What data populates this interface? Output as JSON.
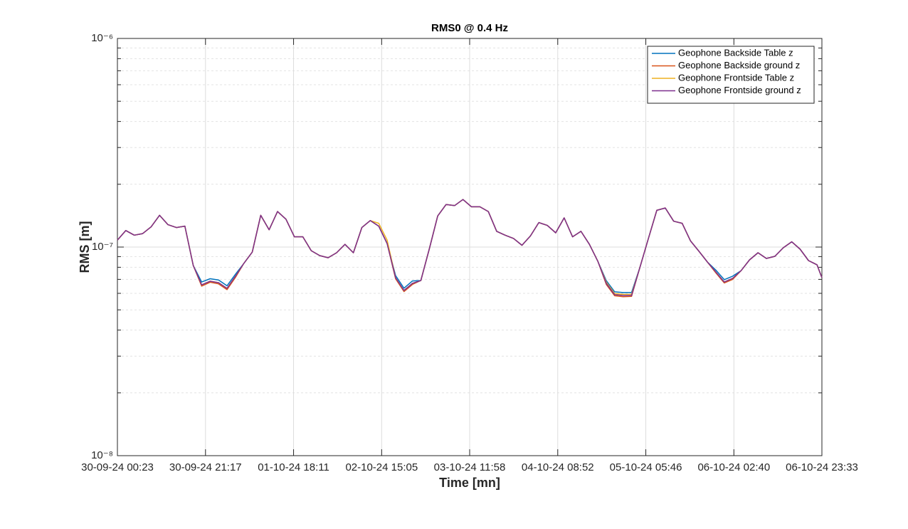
{
  "chart_data": {
    "type": "line",
    "title": "RMS0 @ 0.4 Hz",
    "x_label": "Time [mn]",
    "y_label": "RMS [m]",
    "log_y": true,
    "grid": true,
    "minor_grid": true,
    "legend_position": "top-right",
    "xlim": [
      "30-09-24 00:23",
      "06-10-24 23:33"
    ],
    "xticks": [
      "30-09-24 00:23",
      "30-09-24 21:17",
      "01-10-24 18:11",
      "02-10-24 15:05",
      "03-10-24 11:58",
      "04-10-24 08:52",
      "05-10-24 05:46",
      "06-10-24 02:40",
      "06-10-24 23:33"
    ],
    "ylim": [
      1e-08,
      1e-06
    ],
    "yticks": [
      {
        "value": 1e-08,
        "label": "10⁻⁸"
      },
      {
        "value": 1e-07,
        "label": "10⁻⁷"
      },
      {
        "value": 1e-06,
        "label": "10⁻⁶"
      }
    ],
    "x": [
      "30-09-24 00:23",
      "30-09-24 02:23",
      "30-09-24 04:23",
      "30-09-24 06:23",
      "30-09-24 08:23",
      "30-09-24 10:23",
      "30-09-24 12:23",
      "30-09-24 14:23",
      "30-09-24 16:23",
      "30-09-24 18:23",
      "30-09-24 20:23",
      "30-09-24 22:23",
      "01-10-24 00:23",
      "01-10-24 02:23",
      "01-10-24 04:23",
      "01-10-24 06:23",
      "01-10-24 08:23",
      "01-10-24 10:23",
      "01-10-24 12:23",
      "01-10-24 14:23",
      "01-10-24 16:23",
      "01-10-24 18:23",
      "01-10-24 20:23",
      "01-10-24 22:23",
      "02-10-24 00:23",
      "02-10-24 02:23",
      "02-10-24 04:23",
      "02-10-24 06:23",
      "02-10-24 08:23",
      "02-10-24 10:23",
      "02-10-24 12:23",
      "02-10-24 14:23",
      "02-10-24 16:23",
      "02-10-24 18:23",
      "02-10-24 20:23",
      "02-10-24 22:23",
      "03-10-24 00:23",
      "03-10-24 02:23",
      "03-10-24 04:23",
      "03-10-24 06:23",
      "03-10-24 08:23",
      "03-10-24 10:23",
      "03-10-24 12:23",
      "03-10-24 14:23",
      "03-10-24 16:23",
      "03-10-24 18:23",
      "03-10-24 20:23",
      "03-10-24 22:23",
      "04-10-24 00:23",
      "04-10-24 02:23",
      "04-10-24 04:23",
      "04-10-24 06:23",
      "04-10-24 08:23",
      "04-10-24 10:23",
      "04-10-24 12:23",
      "04-10-24 14:23",
      "04-10-24 16:23",
      "04-10-24 18:23",
      "04-10-24 20:23",
      "04-10-24 22:23",
      "05-10-24 00:23",
      "05-10-24 02:23",
      "05-10-24 04:23",
      "05-10-24 06:23",
      "05-10-24 08:23",
      "05-10-24 10:23",
      "05-10-24 12:23",
      "05-10-24 14:23",
      "05-10-24 16:23",
      "05-10-24 18:23",
      "05-10-24 20:23",
      "05-10-24 22:23",
      "06-10-24 00:23",
      "06-10-24 02:23",
      "06-10-24 04:23",
      "06-10-24 06:23",
      "06-10-24 08:23",
      "06-10-24 10:23",
      "06-10-24 12:23",
      "06-10-24 14:23",
      "06-10-24 16:23",
      "06-10-24 18:23",
      "06-10-24 20:23",
      "06-10-24 22:23",
      "06-10-24 23:33"
    ],
    "series": [
      {
        "name": "Geophone Backside Table z",
        "color": "#0072BD",
        "values": [
          1.08e-07,
          1.2e-07,
          1.14e-07,
          1.16e-07,
          1.25e-07,
          1.42e-07,
          1.28e-07,
          1.24e-07,
          1.26e-07,
          8.15e-08,
          6.8e-08,
          7.05e-08,
          6.95e-08,
          6.52e-08,
          7.4e-08,
          8.35e-08,
          9.46e-08,
          1.42e-07,
          1.21e-07,
          1.48e-07,
          1.36e-07,
          1.12e-07,
          1.12e-07,
          9.61e-08,
          9.1e-08,
          8.89e-08,
          9.39e-08,
          1.03e-07,
          9.39e-08,
          1.24e-07,
          1.34e-07,
          1.26e-07,
          1.04e-07,
          7.3e-08,
          6.35e-08,
          6.88e-08,
          6.91e-08,
          9.77e-08,
          1.41e-07,
          1.6e-07,
          1.58e-07,
          1.69e-07,
          1.56e-07,
          1.56e-07,
          1.48e-07,
          1.19e-07,
          1.14e-07,
          1.1e-07,
          1.02e-07,
          1.13e-07,
          1.31e-07,
          1.27e-07,
          1.17e-07,
          1.38e-07,
          1.12e-07,
          1.19e-07,
          1.03e-07,
          8.55e-08,
          6.9e-08,
          6.1e-08,
          6.05e-08,
          6.05e-08,
          8.02e-08,
          1.1e-07,
          1.5e-07,
          1.54e-07,
          1.33e-07,
          1.3e-07,
          1.07e-07,
          9.54e-08,
          8.48e-08,
          7.75e-08,
          6.98e-08,
          7.25e-08,
          7.71e-08,
          8.68e-08,
          9.39e-08,
          8.82e-08,
          9.03e-08,
          9.92e-08,
          1.06e-07,
          9.77e-08,
          8.61e-08,
          8.22e-08,
          7.13e-08
        ]
      },
      {
        "name": "Geophone Backside ground z",
        "color": "#D95319",
        "values": [
          1.08e-07,
          1.2e-07,
          1.14e-07,
          1.16e-07,
          1.25e-07,
          1.42e-07,
          1.28e-07,
          1.24e-07,
          1.26e-07,
          8.15e-08,
          6.5e-08,
          6.78e-08,
          6.66e-08,
          6.25e-08,
          7.15e-08,
          8.35e-08,
          9.46e-08,
          1.42e-07,
          1.21e-07,
          1.48e-07,
          1.36e-07,
          1.12e-07,
          1.12e-07,
          9.61e-08,
          9.1e-08,
          8.89e-08,
          9.39e-08,
          1.03e-07,
          9.39e-08,
          1.24e-07,
          1.34e-07,
          1.26e-07,
          1.04e-07,
          7.05e-08,
          6.12e-08,
          6.62e-08,
          6.91e-08,
          9.77e-08,
          1.41e-07,
          1.6e-07,
          1.58e-07,
          1.69e-07,
          1.56e-07,
          1.56e-07,
          1.48e-07,
          1.19e-07,
          1.14e-07,
          1.1e-07,
          1.02e-07,
          1.13e-07,
          1.31e-07,
          1.27e-07,
          1.17e-07,
          1.38e-07,
          1.12e-07,
          1.19e-07,
          1.03e-07,
          8.55e-08,
          6.62e-08,
          5.84e-08,
          5.78e-08,
          5.8e-08,
          8.02e-08,
          1.1e-07,
          1.5e-07,
          1.54e-07,
          1.33e-07,
          1.3e-07,
          1.07e-07,
          9.54e-08,
          8.48e-08,
          7.52e-08,
          6.73e-08,
          7e-08,
          7.71e-08,
          8.68e-08,
          9.39e-08,
          8.82e-08,
          9.03e-08,
          9.92e-08,
          1.06e-07,
          9.77e-08,
          8.61e-08,
          8.22e-08,
          7.13e-08
        ]
      },
      {
        "name": "Geophone Frontside Table z",
        "color": "#EDB120",
        "values": [
          1.08e-07,
          1.2e-07,
          1.14e-07,
          1.16e-07,
          1.25e-07,
          1.42e-07,
          1.28e-07,
          1.24e-07,
          1.26e-07,
          8.15e-08,
          6.59e-08,
          6.86e-08,
          6.75e-08,
          6.34e-08,
          7.24e-08,
          8.35e-08,
          9.46e-08,
          1.42e-07,
          1.21e-07,
          1.48e-07,
          1.36e-07,
          1.12e-07,
          1.12e-07,
          9.61e-08,
          9.1e-08,
          8.89e-08,
          9.39e-08,
          1.03e-07,
          9.39e-08,
          1.24e-07,
          1.34e-07,
          1.3e-07,
          1.08e-07,
          7.13e-08,
          6.19e-08,
          6.7e-08,
          6.91e-08,
          9.77e-08,
          1.41e-07,
          1.6e-07,
          1.58e-07,
          1.69e-07,
          1.56e-07,
          1.56e-07,
          1.48e-07,
          1.19e-07,
          1.14e-07,
          1.1e-07,
          1.02e-07,
          1.13e-07,
          1.31e-07,
          1.27e-07,
          1.17e-07,
          1.38e-07,
          1.12e-07,
          1.19e-07,
          1.03e-07,
          8.55e-08,
          6.78e-08,
          5.98e-08,
          5.93e-08,
          5.93e-08,
          8.02e-08,
          1.1e-07,
          1.5e-07,
          1.54e-07,
          1.33e-07,
          1.3e-07,
          1.07e-07,
          9.54e-08,
          8.48e-08,
          7.59e-08,
          6.8e-08,
          7.08e-08,
          7.71e-08,
          8.68e-08,
          9.39e-08,
          8.82e-08,
          9.03e-08,
          9.92e-08,
          1.06e-07,
          9.77e-08,
          8.61e-08,
          8.22e-08,
          7.13e-08
        ]
      },
      {
        "name": "Geophone Frontside ground z",
        "color": "#7E2F8E",
        "values": [
          1.08e-07,
          1.2e-07,
          1.14e-07,
          1.16e-07,
          1.25e-07,
          1.42e-07,
          1.28e-07,
          1.24e-07,
          1.26e-07,
          8.15e-08,
          6.59e-08,
          6.86e-08,
          6.75e-08,
          6.34e-08,
          7.24e-08,
          8.35e-08,
          9.46e-08,
          1.42e-07,
          1.21e-07,
          1.48e-07,
          1.36e-07,
          1.12e-07,
          1.12e-07,
          9.61e-08,
          9.1e-08,
          8.89e-08,
          9.39e-08,
          1.03e-07,
          9.39e-08,
          1.24e-07,
          1.34e-07,
          1.26e-07,
          1.04e-07,
          7.13e-08,
          6.19e-08,
          6.7e-08,
          6.91e-08,
          9.77e-08,
          1.41e-07,
          1.6e-07,
          1.58e-07,
          1.69e-07,
          1.56e-07,
          1.56e-07,
          1.48e-07,
          1.19e-07,
          1.14e-07,
          1.1e-07,
          1.02e-07,
          1.13e-07,
          1.31e-07,
          1.27e-07,
          1.17e-07,
          1.38e-07,
          1.12e-07,
          1.19e-07,
          1.03e-07,
          8.55e-08,
          6.7e-08,
          5.91e-08,
          5.86e-08,
          5.86e-08,
          8.02e-08,
          1.1e-07,
          1.5e-07,
          1.54e-07,
          1.33e-07,
          1.3e-07,
          1.07e-07,
          9.54e-08,
          8.48e-08,
          7.59e-08,
          6.8e-08,
          7.08e-08,
          7.71e-08,
          8.68e-08,
          9.39e-08,
          8.82e-08,
          9.03e-08,
          9.92e-08,
          1.06e-07,
          9.77e-08,
          8.61e-08,
          8.22e-08,
          7.13e-08
        ]
      }
    ]
  }
}
